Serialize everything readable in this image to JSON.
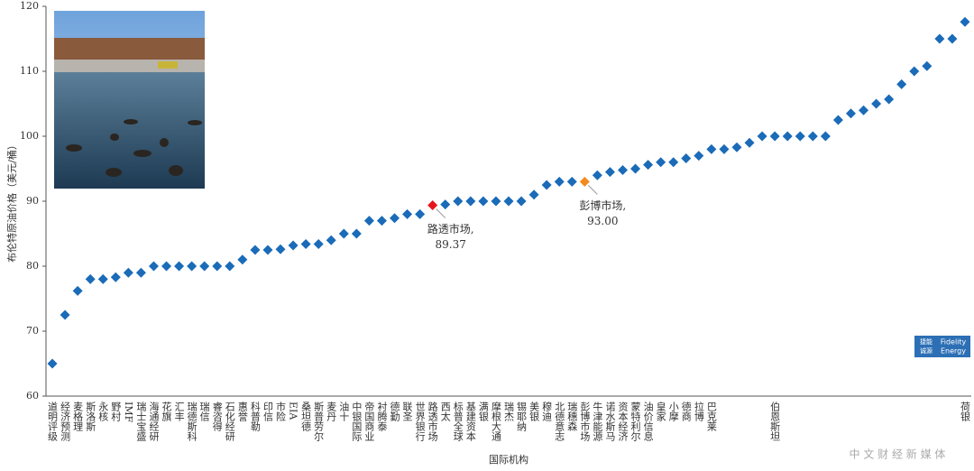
{
  "chart_data": {
    "type": "scatter",
    "y_label": "布伦特原油价格（美元/桶）",
    "x_label": "国际机构",
    "categories": [
      "道明评级",
      "经济预测",
      "麦格理",
      "斯洛斯",
      "永核",
      "野村",
      "IMF",
      "瑞士宝盛",
      "海通经研",
      "花旗",
      "汇丰",
      "瑞德斯科",
      "瑞信",
      "睿咨得",
      "石化经研",
      "惠誉",
      "科普勒",
      "印信",
      "市险",
      "EIA",
      "桑坦德",
      "斯普劳尔",
      "麦丹",
      "油十",
      "中银国际",
      "帝国商业",
      "衬腾泰",
      "德勤",
      "联圣",
      "世界银行",
      "路透市场",
      "西太",
      "标普全球",
      "基建资本",
      "满银",
      "摩根大通",
      "瑞杰",
      "锡耶纳",
      "美银",
      "穆迪",
      "北德意志",
      "瑞穗森",
      "彭博市场",
      "牛津能源",
      "诺水斯马",
      "资本经济",
      "蒙特利尔",
      "油价信息",
      "皇家",
      "小摩",
      "德商",
      "拉博",
      "巴克莱",
      null,
      null,
      null,
      null,
      "伯恩斯坦",
      null,
      null,
      null,
      null,
      null,
      null,
      null,
      null,
      null,
      null,
      null,
      null,
      null,
      null,
      "荷银"
    ],
    "series": [
      {
        "name": "布伦特原油价格",
        "color": "#1a6bb8",
        "values": [
          65,
          72.5,
          76.2,
          78,
          78,
          78.3,
          79,
          79,
          80,
          80,
          80,
          80,
          80,
          80,
          80,
          81,
          82.5,
          82.5,
          82.6,
          83.2,
          83.4,
          83.4,
          84,
          85,
          85,
          87,
          87,
          87.4,
          88,
          88,
          89.37,
          89.5,
          90,
          90,
          90,
          90,
          90,
          90,
          91,
          92.5,
          93,
          93,
          93,
          94,
          94.5,
          94.8,
          95,
          95.6,
          96,
          96,
          96.6,
          97,
          98,
          98,
          98.3,
          99,
          100,
          100,
          100,
          100,
          100,
          100,
          102.5,
          103.5,
          104,
          105,
          105.7,
          108,
          110,
          110.8,
          115,
          115,
          117.6
        ],
        "colors": [
          null,
          null,
          null,
          null,
          null,
          null,
          null,
          null,
          null,
          null,
          null,
          null,
          null,
          null,
          null,
          null,
          null,
          null,
          null,
          null,
          null,
          null,
          null,
          null,
          null,
          null,
          null,
          null,
          null,
          null,
          "#e8141b",
          null,
          null,
          null,
          null,
          null,
          null,
          null,
          null,
          null,
          null,
          null,
          "#f28a1e",
          null,
          null,
          null,
          null,
          null,
          null,
          null,
          null,
          null,
          null,
          null,
          null,
          null,
          null,
          null,
          null,
          null,
          null,
          null,
          null,
          null,
          null,
          null,
          null,
          null,
          null,
          null,
          null,
          null,
          null
        ],
        "point_labels": [
          null,
          null,
          null,
          null,
          null,
          null,
          null,
          null,
          null,
          null,
          null,
          null,
          null,
          null,
          null,
          null,
          null,
          null,
          null,
          null,
          null,
          null,
          null,
          null,
          null,
          null,
          null,
          null,
          null,
          null,
          "路透市场,",
          null,
          null,
          null,
          null,
          null,
          null,
          null,
          null,
          null,
          null,
          null,
          "彭博市场,",
          null,
          null,
          null,
          null,
          null,
          null,
          null,
          null,
          null,
          null,
          null,
          null,
          null,
          null,
          null,
          null,
          null,
          null,
          null,
          null,
          null,
          null,
          null,
          null,
          null,
          null,
          null,
          null,
          null,
          null
        ],
        "value_labels": [
          null,
          null,
          null,
          null,
          null,
          null,
          null,
          null,
          null,
          null,
          null,
          null,
          null,
          null,
          null,
          null,
          null,
          null,
          null,
          null,
          null,
          null,
          null,
          null,
          null,
          null,
          null,
          null,
          null,
          null,
          "89.37",
          null,
          null,
          null,
          null,
          null,
          null,
          null,
          null,
          null,
          null,
          null,
          "93.00",
          null,
          null,
          null,
          null,
          null,
          null,
          null,
          null,
          null,
          null,
          null,
          null,
          null,
          null,
          null,
          null,
          null,
          null,
          null,
          null,
          null,
          null,
          null,
          null,
          null,
          null,
          null,
          null,
          null,
          null
        ]
      }
    ],
    "ylim": [
      60,
      120
    ],
    "yticks": [
      60,
      70,
      80,
      90,
      100,
      110,
      120
    ],
    "grid": false,
    "badge": [
      "捷能",
      "诚源",
      "Fidelity",
      "Energy"
    ],
    "watermark": "中 文 财 经 新 媒 体"
  }
}
